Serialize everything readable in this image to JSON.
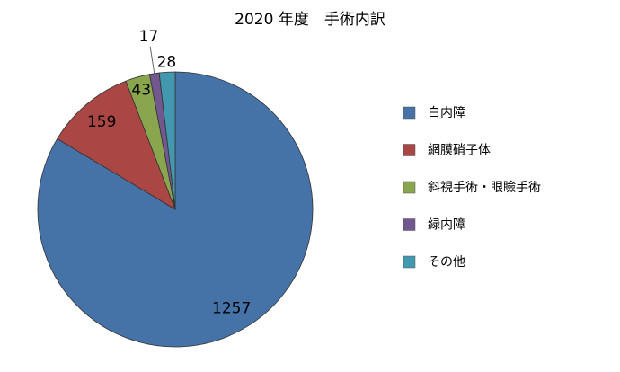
{
  "chart_data": {
    "type": "pie",
    "title": "2020 年度　手術内訳",
    "categories": [
      "白内障",
      "網膜硝子体",
      "斜視手術・眼瞼手術",
      "緑内障",
      "その他"
    ],
    "values": [
      1257,
      159,
      43,
      17,
      28
    ],
    "colors": [
      "#4572a7",
      "#aa4643",
      "#89a54e",
      "#71588f",
      "#4198af"
    ],
    "legend": "right"
  }
}
